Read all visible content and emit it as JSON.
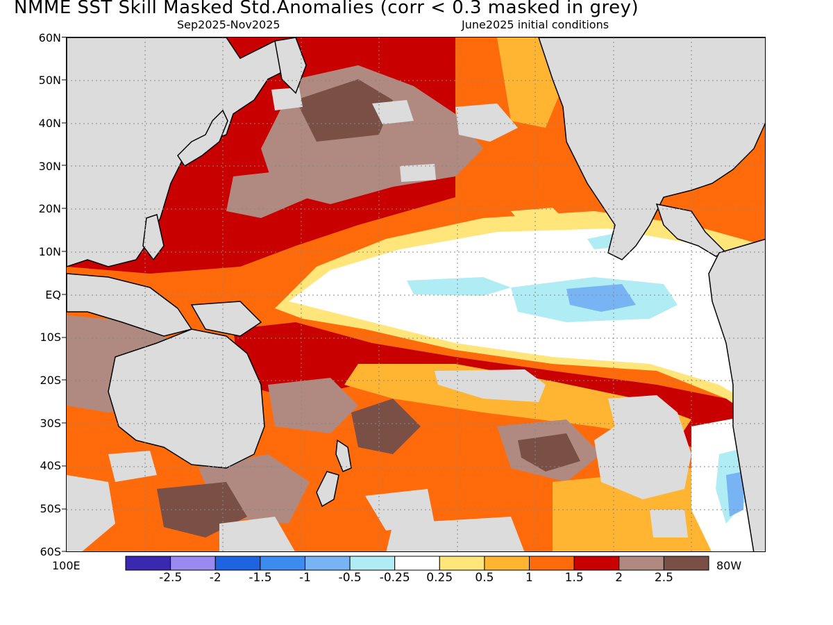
{
  "title": "NMME   SST Skill Masked Std.Anomalies (corr < 0.3 masked in grey)",
  "subtitle_left": "Sep2025-Nov2025",
  "subtitle_right": "June2025 initial conditions",
  "lat_labels": [
    "60N",
    "50N",
    "40N",
    "30N",
    "20N",
    "10N",
    "EQ",
    "10S",
    "20S",
    "30S",
    "40S",
    "50S",
    "60S"
  ],
  "lon_labels": {
    "left": "100E",
    "right": "80W"
  },
  "colorbar": {
    "colors": [
      "#3a28b0",
      "#9a8af0",
      "#1e64e0",
      "#3c8cf0",
      "#78b4f4",
      "#b0ecf4",
      "#ffffff",
      "#ffe57a",
      "#ffb432",
      "#ff6a0a",
      "#c80000",
      "#b08a80",
      "#7a5046"
    ],
    "labels": [
      "-2.5",
      "-2",
      "-1.5",
      "-1",
      "-0.5",
      "-0.25",
      "0.25",
      "0.5",
      "1",
      "1.5",
      "2",
      "2.5"
    ]
  },
  "legend_colors": {
    "masked": "#dcdcdc",
    "land": "#dcdcdc"
  }
}
